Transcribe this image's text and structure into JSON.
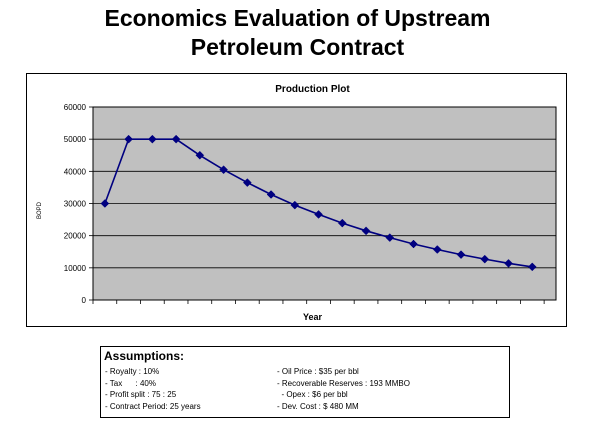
{
  "slide": {
    "title_line1": "Economics Evaluation of Upstream",
    "title_line2": "Petroleum Contract"
  },
  "chart_data": {
    "type": "line",
    "title": "Production Plot",
    "xlabel": "Year",
    "ylabel": "BOPD",
    "ylim": [
      0,
      60000
    ],
    "yticks": [
      0,
      10000,
      20000,
      30000,
      40000,
      50000,
      60000
    ],
    "grid": true,
    "x": [
      1,
      2,
      3,
      4,
      5,
      6,
      7,
      8,
      9,
      10,
      11,
      12,
      13,
      14,
      15,
      16,
      17,
      18,
      19
    ],
    "series": [
      {
        "values": [
          30000,
          50000,
          50000,
          50000,
          45000,
          40500,
          36500,
          32800,
          29500,
          26600,
          23900,
          21500,
          19400,
          17400,
          15700,
          14100,
          12700,
          11400,
          10300
        ]
      }
    ],
    "colors": {
      "plot_background": "#c0c0c0",
      "line": "#000080",
      "marker": "#000080"
    }
  },
  "assumptions": {
    "title": "Assumptions:",
    "left": [
      "- Royalty : 10%",
      "- Tax      : 40%",
      "- Profit split : 75 : 25",
      "- Contract Period: 25 years"
    ],
    "right": [
      "- Oil Price : $35 per bbl",
      "- Recoverable Reserves : 193 MMBO",
      "  - Opex : $6 per bbl",
      "- Dev. Cost : $ 480 MM"
    ]
  }
}
